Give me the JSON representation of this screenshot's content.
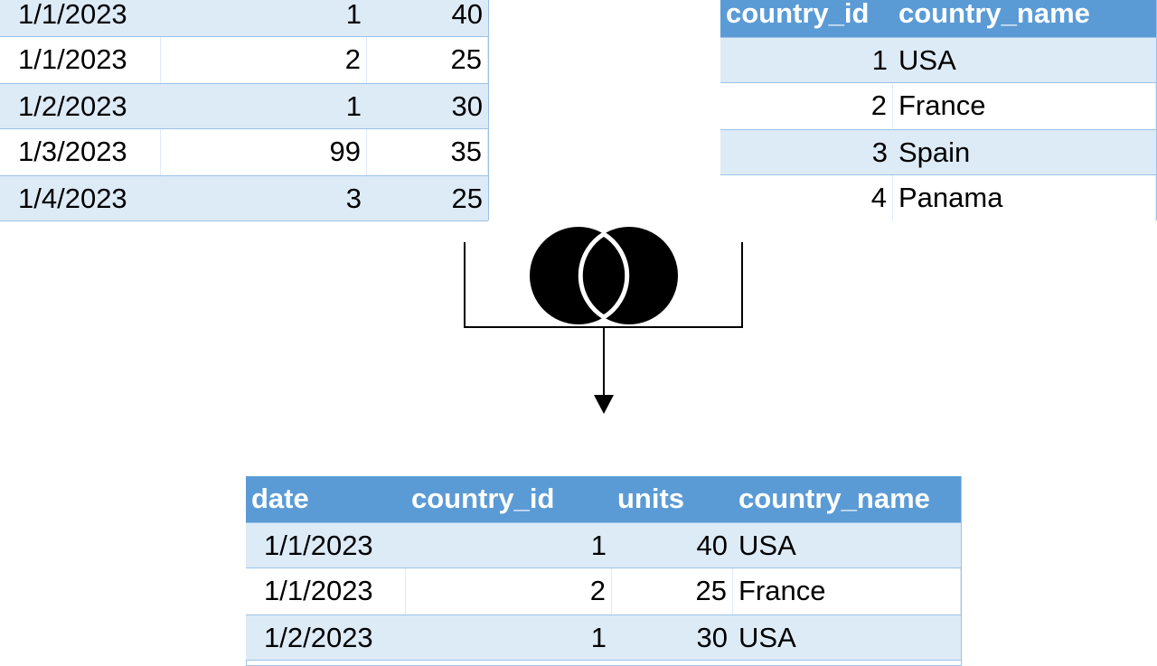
{
  "left_table": {
    "rows": [
      [
        "1/1/2023",
        "1",
        "40"
      ],
      [
        "1/1/2023",
        "2",
        "25"
      ],
      [
        "1/2/2023",
        "1",
        "30"
      ],
      [
        "1/3/2023",
        "99",
        "35"
      ],
      [
        "1/4/2023",
        "3",
        "25"
      ]
    ]
  },
  "right_table": {
    "header": [
      "country_id",
      "country_name"
    ],
    "rows": [
      [
        "1",
        "USA"
      ],
      [
        "2",
        "France"
      ],
      [
        "3",
        "Spain"
      ],
      [
        "4",
        "Panama"
      ]
    ]
  },
  "result_table": {
    "header": [
      "date",
      "country_id",
      "units",
      "country_name"
    ],
    "rows": [
      [
        "1/1/2023",
        "1",
        "40",
        "USA"
      ],
      [
        "1/1/2023",
        "2",
        "25",
        "France"
      ],
      [
        "1/2/2023",
        "1",
        "30",
        "USA"
      ]
    ]
  }
}
